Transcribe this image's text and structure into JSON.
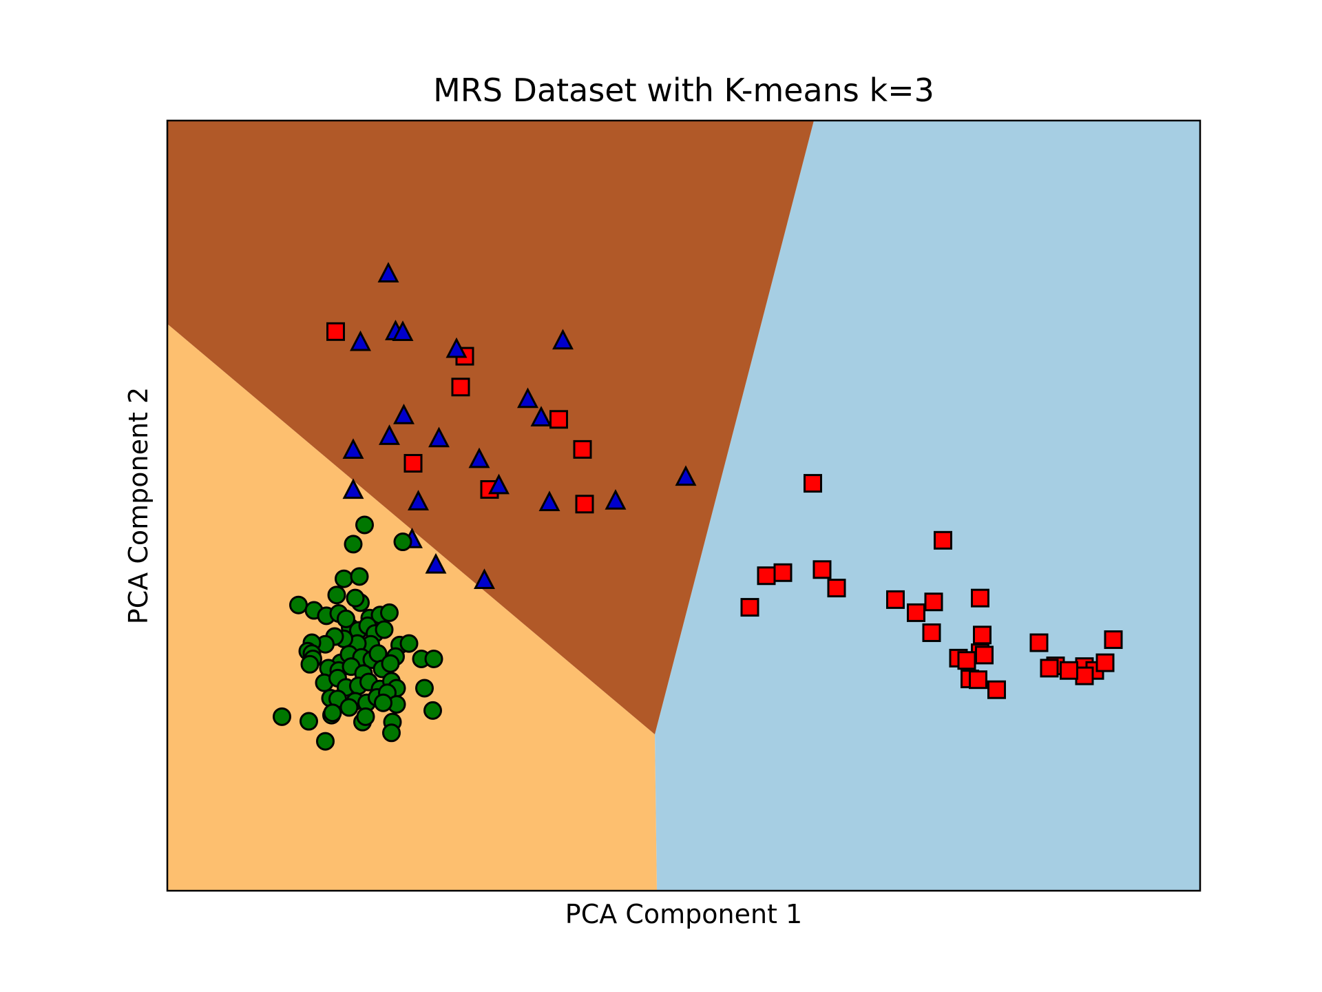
{
  "chart_data": {
    "type": "scatter",
    "title": "MRS Dataset with K-means k=3",
    "xlabel": "PCA Component 1",
    "ylabel": "PCA Component 2",
    "xticks": [],
    "yticks": [],
    "xlim": [
      0,
      100
    ],
    "ylim": [
      0,
      100
    ],
    "grid": false,
    "legend": "none",
    "regions": [
      {
        "cluster": 0,
        "color": "#A6CEE3",
        "polygon": [
          [
            47.4,
            0
          ],
          [
            100,
            0
          ],
          [
            100,
            100
          ],
          [
            62.6,
            100
          ],
          [
            47.2,
            20.3
          ]
        ]
      },
      {
        "cluster": 1,
        "color": "#FDBF6F",
        "polygon": [
          [
            0,
            0
          ],
          [
            47.4,
            0
          ],
          [
            47.2,
            20.3
          ],
          [
            0,
            73.6
          ]
        ]
      },
      {
        "cluster": 2,
        "color": "#B15928",
        "polygon": [
          [
            0,
            73.6
          ],
          [
            47.2,
            20.3
          ],
          [
            62.6,
            100
          ],
          [
            0,
            100
          ]
        ]
      }
    ],
    "series": [
      {
        "marker": "square",
        "color": "#FF0000",
        "points": [
          [
            16.3,
            72.6
          ],
          [
            28.8,
            69.4
          ],
          [
            28.4,
            65.4
          ],
          [
            37.9,
            61.2
          ],
          [
            40.2,
            57.3
          ],
          [
            23.8,
            55.5
          ],
          [
            31.2,
            52.1
          ],
          [
            40.4,
            50.2
          ],
          [
            62.5,
            52.9
          ],
          [
            75.1,
            45.5
          ],
          [
            58.0,
            40.9
          ],
          [
            59.6,
            41.3
          ],
          [
            64.8,
            39.3
          ],
          [
            63.4,
            41.7
          ],
          [
            56.4,
            36.8
          ],
          [
            70.5,
            37.8
          ],
          [
            72.5,
            36.1
          ],
          [
            74.2,
            37.5
          ],
          [
            78.7,
            38.0
          ],
          [
            74.0,
            33.5
          ],
          [
            78.9,
            33.2
          ],
          [
            78.7,
            30.9
          ],
          [
            76.6,
            30.2
          ],
          [
            79.1,
            30.6
          ],
          [
            77.4,
            29.9
          ],
          [
            91.6,
            32.6
          ],
          [
            84.4,
            32.2
          ],
          [
            86.0,
            29.2
          ],
          [
            85.4,
            28.9
          ],
          [
            88.8,
            29.1
          ],
          [
            89.8,
            28.6
          ],
          [
            90.8,
            29.6
          ],
          [
            88.8,
            27.9
          ],
          [
            77.7,
            27.5
          ],
          [
            78.5,
            27.4
          ],
          [
            80.3,
            26.1
          ],
          [
            87.3,
            28.6
          ]
        ]
      },
      {
        "marker": "triangle",
        "color": "#0000CC",
        "points": [
          [
            21.4,
            80.1
          ],
          [
            22.1,
            72.6
          ],
          [
            22.8,
            72.5
          ],
          [
            18.7,
            71.2
          ],
          [
            28.0,
            70.3
          ],
          [
            38.3,
            71.4
          ],
          [
            34.9,
            63.8
          ],
          [
            36.2,
            61.4
          ],
          [
            22.9,
            61.7
          ],
          [
            21.5,
            59.0
          ],
          [
            26.3,
            58.7
          ],
          [
            18.0,
            57.2
          ],
          [
            30.2,
            56.0
          ],
          [
            32.1,
            52.6
          ],
          [
            18.0,
            52.0
          ],
          [
            24.3,
            50.5
          ],
          [
            37.0,
            50.4
          ],
          [
            43.4,
            50.6
          ],
          [
            50.2,
            53.7
          ],
          [
            23.7,
            45.6
          ],
          [
            26.0,
            42.3
          ],
          [
            30.7,
            40.3
          ]
        ]
      },
      {
        "marker": "circle",
        "color": "#007700",
        "points": [
          [
            19.1,
            47.5
          ],
          [
            18.0,
            45.0
          ],
          [
            22.8,
            45.3
          ],
          [
            17.1,
            40.5
          ],
          [
            18.6,
            40.8
          ],
          [
            16.4,
            38.4
          ],
          [
            12.7,
            37.1
          ],
          [
            14.2,
            36.4
          ],
          [
            15.4,
            35.7
          ],
          [
            16.6,
            36.0
          ],
          [
            18.7,
            37.4
          ],
          [
            19.6,
            35.4
          ],
          [
            20.6,
            35.8
          ],
          [
            21.5,
            36.1
          ],
          [
            17.7,
            34.2
          ],
          [
            18.5,
            33.8
          ],
          [
            19.4,
            34.4
          ],
          [
            20.1,
            33.4
          ],
          [
            21.0,
            33.9
          ],
          [
            19.7,
            32.0
          ],
          [
            18.4,
            32.1
          ],
          [
            17.1,
            32.7
          ],
          [
            16.2,
            33.0
          ],
          [
            15.3,
            32.0
          ],
          [
            14.0,
            32.2
          ],
          [
            22.5,
            31.9
          ],
          [
            23.4,
            32.1
          ],
          [
            13.6,
            31.1
          ],
          [
            14.0,
            30.8
          ],
          [
            14.1,
            30.1
          ],
          [
            13.8,
            29.4
          ],
          [
            16.8,
            29.6
          ],
          [
            17.6,
            30.7
          ],
          [
            18.8,
            30.3
          ],
          [
            19.8,
            30.0
          ],
          [
            20.4,
            30.8
          ],
          [
            22.1,
            30.4
          ],
          [
            24.6,
            30.1
          ],
          [
            25.8,
            30.1
          ],
          [
            15.6,
            28.9
          ],
          [
            16.6,
            28.6
          ],
          [
            17.8,
            29.1
          ],
          [
            19.0,
            28.2
          ],
          [
            20.8,
            28.8
          ],
          [
            21.6,
            29.5
          ],
          [
            15.2,
            27.0
          ],
          [
            16.5,
            27.6
          ],
          [
            17.3,
            26.4
          ],
          [
            18.5,
            26.6
          ],
          [
            19.5,
            27.1
          ],
          [
            20.6,
            26.2
          ],
          [
            21.7,
            27.2
          ],
          [
            22.2,
            26.3
          ],
          [
            24.9,
            26.3
          ],
          [
            15.8,
            25.0
          ],
          [
            16.5,
            24.9
          ],
          [
            18.2,
            24.6
          ],
          [
            19.3,
            24.4
          ],
          [
            20.3,
            25.1
          ],
          [
            21.3,
            25.7
          ],
          [
            15.9,
            22.8
          ],
          [
            18.9,
            21.9
          ],
          [
            21.8,
            21.9
          ],
          [
            25.7,
            23.4
          ],
          [
            22.2,
            24.2
          ],
          [
            20.9,
            24.4
          ],
          [
            16.0,
            23.1
          ],
          [
            17.6,
            23.8
          ],
          [
            19.2,
            22.6
          ],
          [
            11.1,
            22.6
          ],
          [
            13.7,
            22.0
          ],
          [
            21.7,
            20.5
          ],
          [
            15.3,
            19.4
          ],
          [
            18.2,
            38.0
          ],
          [
            17.3,
            35.3
          ]
        ]
      }
    ]
  }
}
